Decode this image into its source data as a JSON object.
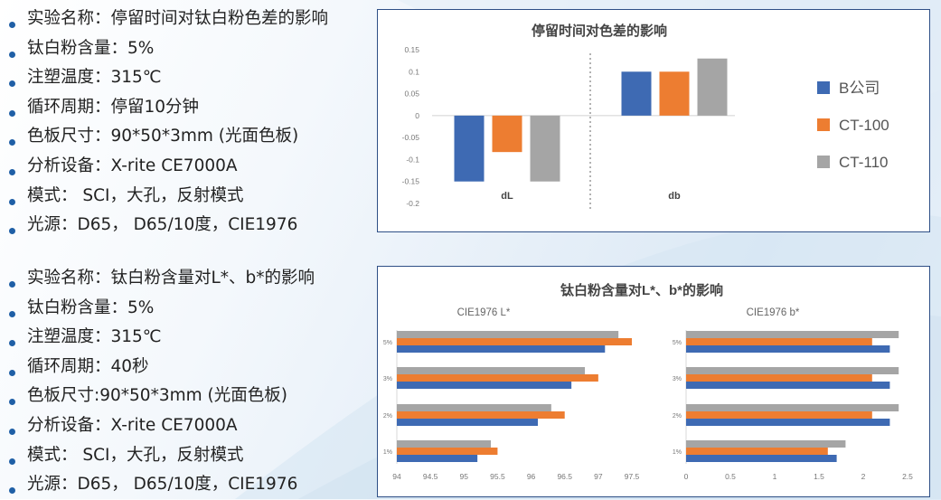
{
  "section1": {
    "bullets": [
      "实验名称：停留时间对钛白粉色差的影响",
      "钛白粉含量：5%",
      "注塑温度：315℃",
      "循环周期：停留10分钟",
      "色板尺寸：90*50*3mm (光面色板)",
      "分析设备：X-rite CE7000A",
      "模式： SCI，大孔，反射模式",
      "光源：D65， D65/10度，CIE1976"
    ]
  },
  "section2": {
    "bullets": [
      "实验名称：钛白粉含量对L*、b*的影响",
      "钛白粉含量：5%",
      "注塑温度：315℃",
      "循环周期：40秒",
      "色板尺寸:90*50*3mm (光面色板)",
      "分析设备：X-rite CE7000A",
      "模式： SCI，大孔，反射模式",
      "光源：D65， D65/10度，CIE1976"
    ]
  },
  "colors": {
    "series1": "#3e6ab3",
    "series2": "#ed7d31",
    "series3": "#a5a5a5",
    "accent": "#1f5fa6"
  },
  "chart_data": [
    {
      "type": "bar",
      "title": "停留时间对色差的影响",
      "categories": [
        "dL",
        "db"
      ],
      "ylim": [
        -0.2,
        0.15
      ],
      "yticks": [
        "0.15",
        "0.1",
        "0.05",
        "0",
        "-0.05",
        "-0.1",
        "-0.15",
        "-0.2"
      ],
      "grid": false,
      "legend": "right",
      "series": [
        {
          "name": "B公司",
          "values": [
            -0.15,
            0.1
          ]
        },
        {
          "name": "CT-100",
          "values": [
            -0.083,
            0.1
          ]
        },
        {
          "name": "CT-110",
          "values": [
            -0.15,
            0.13
          ]
        }
      ]
    },
    {
      "type": "bar",
      "orientation": "horizontal",
      "title": "钛白粉含量对L*、b*的影响",
      "subcharts": [
        {
          "title": "CIE1976 L*",
          "categories": [
            "5%",
            "3%",
            "2%",
            "1%"
          ],
          "xlim": [
            94,
            97.5
          ],
          "xticks": [
            "94",
            "94.5",
            "95",
            "95.5",
            "96",
            "96.5",
            "97",
            "97.5"
          ],
          "series": [
            {
              "values": [
                97.3,
                96.8,
                96.3,
                95.4
              ]
            },
            {
              "values": [
                97.5,
                97.0,
                96.5,
                95.5
              ]
            },
            {
              "values": [
                97.1,
                96.6,
                96.1,
                95.2
              ]
            }
          ]
        },
        {
          "title": "CIE1976 b*",
          "categories": [
            "5%",
            "3%",
            "2%",
            "1%"
          ],
          "xlim": [
            0,
            2.5
          ],
          "xticks": [
            "0",
            "0.5",
            "1",
            "1.5",
            "2",
            "2.5"
          ],
          "series": [
            {
              "values": [
                2.4,
                2.4,
                2.4,
                1.8
              ]
            },
            {
              "values": [
                2.1,
                2.1,
                2.1,
                1.6
              ]
            },
            {
              "values": [
                2.3,
                2.3,
                2.3,
                1.7
              ]
            }
          ]
        }
      ]
    }
  ]
}
